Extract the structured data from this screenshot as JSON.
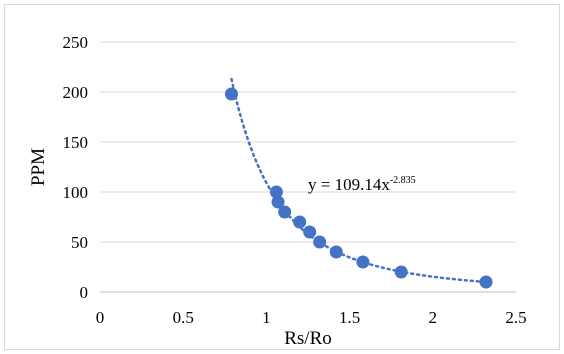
{
  "chart_data": {
    "type": "scatter",
    "xlabel": "Rs/Ro",
    "ylabel": "PPM",
    "xlim": [
      0,
      2.5
    ],
    "ylim": [
      0,
      250
    ],
    "x_ticks": [
      "0",
      "0.5",
      "1",
      "1.5",
      "2",
      "2.5"
    ],
    "y_ticks": [
      "0",
      "50",
      "100",
      "150",
      "200",
      "250"
    ],
    "x_tick_values": [
      0,
      0.5,
      1,
      1.5,
      2,
      2.5
    ],
    "y_tick_values": [
      0,
      50,
      100,
      150,
      200,
      250
    ],
    "grid": {
      "horizontal": true,
      "vertical": false
    },
    "series": [
      {
        "marker_color": "#4472c4",
        "points": [
          {
            "x": 0.79,
            "y": 198
          },
          {
            "x": 1.06,
            "y": 100
          },
          {
            "x": 1.07,
            "y": 90
          },
          {
            "x": 1.11,
            "y": 80
          },
          {
            "x": 1.2,
            "y": 70
          },
          {
            "x": 1.26,
            "y": 60
          },
          {
            "x": 1.32,
            "y": 50
          },
          {
            "x": 1.42,
            "y": 40
          },
          {
            "x": 1.58,
            "y": 30
          },
          {
            "x": 1.81,
            "y": 20
          },
          {
            "x": 2.32,
            "y": 10
          }
        ]
      }
    ],
    "trendline": {
      "type": "power",
      "coefficient": 109.14,
      "exponent": -2.835,
      "x_range": [
        0.79,
        2.33
      ],
      "style": "dotted",
      "color": "#4472c4",
      "equation_prefix": "y = 109.14x",
      "equation_exponent": "-2.835"
    },
    "colors": {
      "gridline": "#d9d9d9",
      "axis": "#bfbfbf",
      "marker": "#4472c4"
    }
  }
}
